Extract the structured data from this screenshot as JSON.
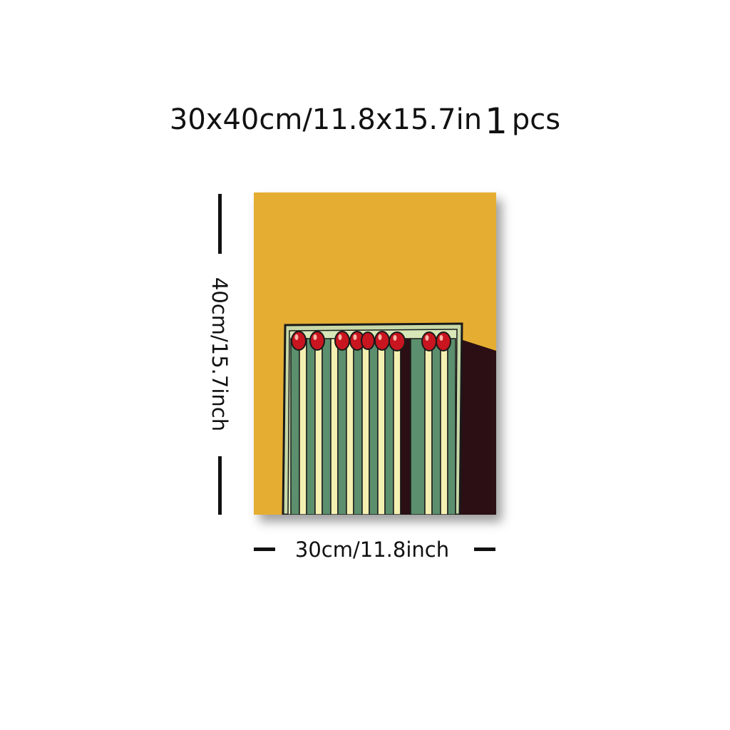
{
  "title": {
    "size_text": "30x40cm/11.8x15.7in",
    "quantity_number": "1",
    "quantity_unit": "pcs"
  },
  "dimensions": {
    "height_label": "40cm/15.7inch",
    "width_label": "30cm/11.8inch"
  },
  "artwork": {
    "subject": "matchbox-with-red-tipped-matches",
    "background_color": "#E5AE32",
    "shadow_color": "#2B0F14",
    "box_color": "#C7D9A8",
    "stick_dark_color": "#5C8F6D",
    "stick_light_color": "#F4F0B2",
    "match_head_color": "#C8151F",
    "match_count": 9
  }
}
